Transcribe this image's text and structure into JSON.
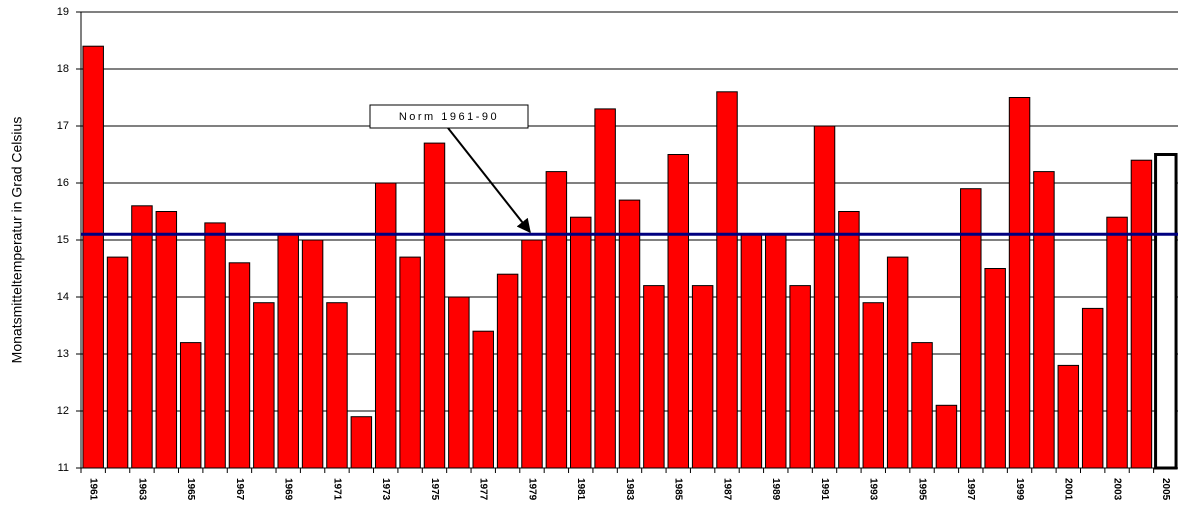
{
  "chart_data": {
    "type": "bar",
    "y_label": "Monatsmitteltemperatur in Grad Celsius",
    "categories": [
      "1961",
      null,
      "1963",
      null,
      "1965",
      null,
      "1967",
      null,
      "1969",
      null,
      "1971",
      null,
      "1973",
      null,
      "1975",
      null,
      "1977",
      null,
      "1979",
      null,
      "1981",
      null,
      "1983",
      null,
      "1985",
      null,
      "1987",
      null,
      "1989",
      null,
      "1991",
      null,
      "1993",
      null,
      "1995",
      null,
      "1997",
      null,
      "1999",
      null,
      "2001",
      null,
      "2003",
      null,
      "2005"
    ],
    "values": [
      18.4,
      14.7,
      15.6,
      15.5,
      13.2,
      15.3,
      14.6,
      13.9,
      15.1,
      15.0,
      13.9,
      11.9,
      16.0,
      14.7,
      16.7,
      14.0,
      13.4,
      14.4,
      15.0,
      16.2,
      15.4,
      17.3,
      15.7,
      14.2,
      16.5,
      14.2,
      17.6,
      15.1,
      15.1,
      14.2,
      17.0,
      15.5,
      13.9,
      14.7,
      13.2,
      12.1,
      15.9,
      14.5,
      17.5,
      16.2,
      12.8,
      13.8,
      15.4,
      16.4,
      16.5
    ],
    "colors": [
      "#ff0000",
      "#ff0000",
      "#ff0000",
      "#ff0000",
      "#ff0000",
      "#ff0000",
      "#ff0000",
      "#ff0000",
      "#ff0000",
      "#ff0000",
      "#ff0000",
      "#ff0000",
      "#ff0000",
      "#ff0000",
      "#ff0000",
      "#ff0000",
      "#ff0000",
      "#ff0000",
      "#ff0000",
      "#ff0000",
      "#ff0000",
      "#ff0000",
      "#ff0000",
      "#ff0000",
      "#ff0000",
      "#ff0000",
      "#ff0000",
      "#ff0000",
      "#ff0000",
      "#ff0000",
      "#ff0000",
      "#ff0000",
      "#ff0000",
      "#ff0000",
      "#ff0000",
      "#ff0000",
      "#ff0000",
      "#ff0000",
      "#ff0000",
      "#ff0000",
      "#ff0000",
      "#ff0000",
      "#ff0000",
      "#ff0000",
      "#ffffff"
    ],
    "edge_color": "#000000",
    "reference_line": {
      "label": "Norm 1961-90",
      "value": 15.1,
      "color": "#000080"
    },
    "ylim": [
      11,
      19
    ],
    "yticks": [
      11,
      12,
      13,
      14,
      15,
      16,
      17,
      18,
      19
    ],
    "grid": true
  }
}
